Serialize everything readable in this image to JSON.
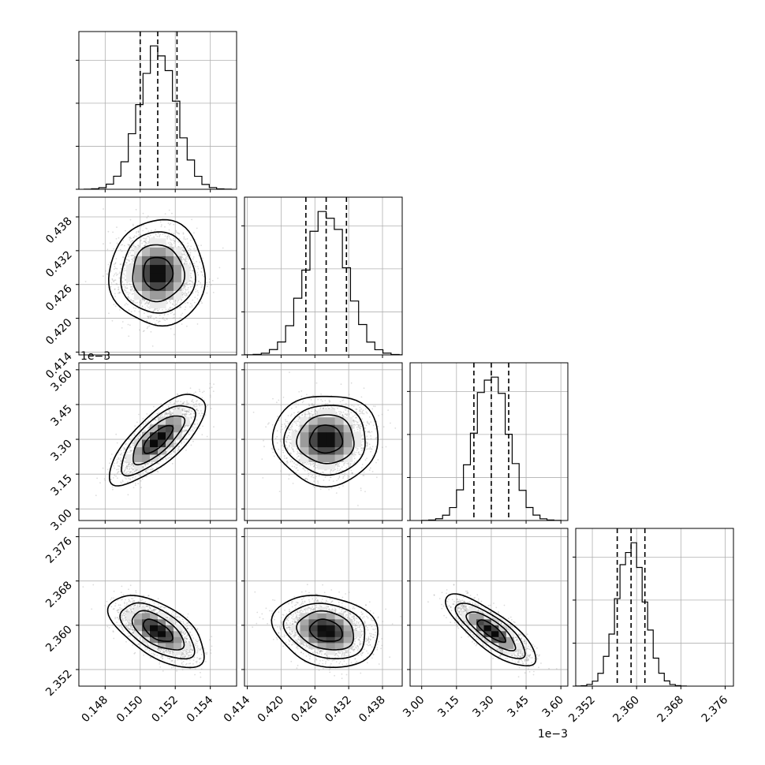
{
  "chart_data": {
    "type": "corner",
    "parameters": [
      {
        "ticks": [
          0.148,
          0.15,
          0.152,
          0.154
        ],
        "labels": [
          "0.148",
          "0.150",
          "0.152",
          "0.154"
        ],
        "range": [
          0.1465,
          0.1555
        ],
        "mean": 0.151,
        "sd": 0.00105,
        "q16": 0.15,
        "q50": 0.151,
        "q84": 0.1521
      },
      {
        "ticks": [
          0.414,
          0.42,
          0.426,
          0.432,
          0.438
        ],
        "labels": [
          "0.414",
          "0.420",
          "0.426",
          "0.432",
          "0.438"
        ],
        "range": [
          0.4135,
          0.4415
        ],
        "mean": 0.428,
        "sd": 0.0036,
        "q16": 0.4244,
        "q50": 0.428,
        "q84": 0.4316
      },
      {
        "ticks": [
          3.0,
          3.15,
          3.3,
          3.45,
          3.6
        ],
        "labels": [
          "3.00",
          "3.15",
          "3.30",
          "3.45",
          "3.60"
        ],
        "range": [
          2.95,
          3.63
        ],
        "mean": 3.3,
        "sd": 0.075,
        "q16": 3.225,
        "q50": 3.3,
        "q84": 3.375,
        "offset_text": "1e−3"
      },
      {
        "ticks": [
          2.352,
          2.36,
          2.368,
          2.376
        ],
        "labels": [
          "2.352",
          "2.360",
          "2.368",
          "2.376"
        ],
        "range": [
          2.349,
          2.3775
        ],
        "mean": 2.359,
        "sd": 0.0025,
        "q16": 2.3565,
        "q50": 2.359,
        "q84": 2.3615
      }
    ],
    "correlations": {
      "1-0": 0.0,
      "2-0": 0.75,
      "2-1": 0.0,
      "3-0": -0.6,
      "3-1": -0.2,
      "3-2": -0.8
    },
    "quantiles": [
      0.16,
      0.5,
      0.84
    ],
    "contour_levels_sigma": [
      0.5,
      1.0,
      1.5,
      2.0
    ],
    "grid": true,
    "colors": {
      "ink": "#000000",
      "grid": "#b0b0b0",
      "points": "#9a9a9a"
    }
  }
}
